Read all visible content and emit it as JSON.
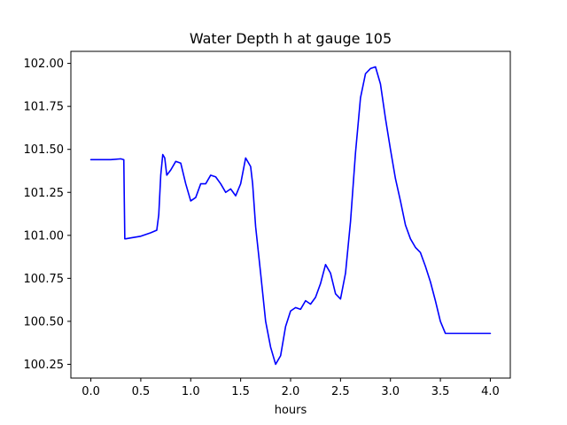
{
  "chart_data": {
    "type": "line",
    "title": "Water Depth h at gauge 105",
    "xlabel": "hours",
    "ylabel": "",
    "xlim": [
      -0.2,
      4.2
    ],
    "ylim": [
      100.17,
      102.07
    ],
    "xticks": [
      0.0,
      0.5,
      1.0,
      1.5,
      2.0,
      2.5,
      3.0,
      3.5,
      4.0
    ],
    "xtick_labels": [
      "0.0",
      "0.5",
      "1.0",
      "1.5",
      "2.0",
      "2.5",
      "3.0",
      "3.5",
      "4.0"
    ],
    "yticks": [
      100.25,
      100.5,
      100.75,
      101.0,
      101.25,
      101.5,
      101.75,
      102.0
    ],
    "ytick_labels": [
      "100.25",
      "100.50",
      "100.75",
      "101.00",
      "101.25",
      "101.50",
      "101.75",
      "102.00"
    ],
    "grid": false,
    "series": [
      {
        "color": "#0000ff",
        "x": [
          0.0,
          0.1,
          0.2,
          0.3,
          0.33,
          0.335,
          0.34,
          0.35,
          0.4,
          0.5,
          0.6,
          0.66,
          0.68,
          0.7,
          0.72,
          0.74,
          0.76,
          0.8,
          0.85,
          0.9,
          0.95,
          1.0,
          1.05,
          1.1,
          1.15,
          1.2,
          1.25,
          1.3,
          1.35,
          1.4,
          1.45,
          1.5,
          1.55,
          1.6,
          1.62,
          1.65,
          1.7,
          1.75,
          1.8,
          1.85,
          1.9,
          1.95,
          2.0,
          2.05,
          2.1,
          2.15,
          2.2,
          2.25,
          2.3,
          2.35,
          2.4,
          2.45,
          2.5,
          2.55,
          2.6,
          2.65,
          2.7,
          2.75,
          2.8,
          2.85,
          2.9,
          2.95,
          3.0,
          3.05,
          3.1,
          3.15,
          3.2,
          3.25,
          3.3,
          3.35,
          3.4,
          3.45,
          3.5,
          3.55,
          3.6,
          3.65,
          3.7,
          3.75,
          3.8,
          3.85,
          3.9,
          3.95,
          4.0
        ],
        "y": [
          101.44,
          101.44,
          101.44,
          101.445,
          101.44,
          101.2,
          100.98,
          100.98,
          100.985,
          100.995,
          101.015,
          101.03,
          101.12,
          101.35,
          101.47,
          101.45,
          101.35,
          101.38,
          101.43,
          101.42,
          101.3,
          101.2,
          101.22,
          101.3,
          101.3,
          101.35,
          101.34,
          101.3,
          101.25,
          101.27,
          101.23,
          101.3,
          101.45,
          101.4,
          101.3,
          101.05,
          100.78,
          100.5,
          100.35,
          100.25,
          100.3,
          100.47,
          100.56,
          100.58,
          100.57,
          100.62,
          100.6,
          100.64,
          100.72,
          100.83,
          100.78,
          100.66,
          100.63,
          100.78,
          101.08,
          101.48,
          101.8,
          101.94,
          101.97,
          101.98,
          101.88,
          101.68,
          101.5,
          101.33,
          101.2,
          101.06,
          100.98,
          100.93,
          100.9,
          100.82,
          100.73,
          100.62,
          100.5,
          100.43,
          100.43,
          100.43,
          100.43,
          100.43,
          100.43,
          100.43,
          100.43,
          100.43,
          100.43
        ]
      }
    ]
  }
}
